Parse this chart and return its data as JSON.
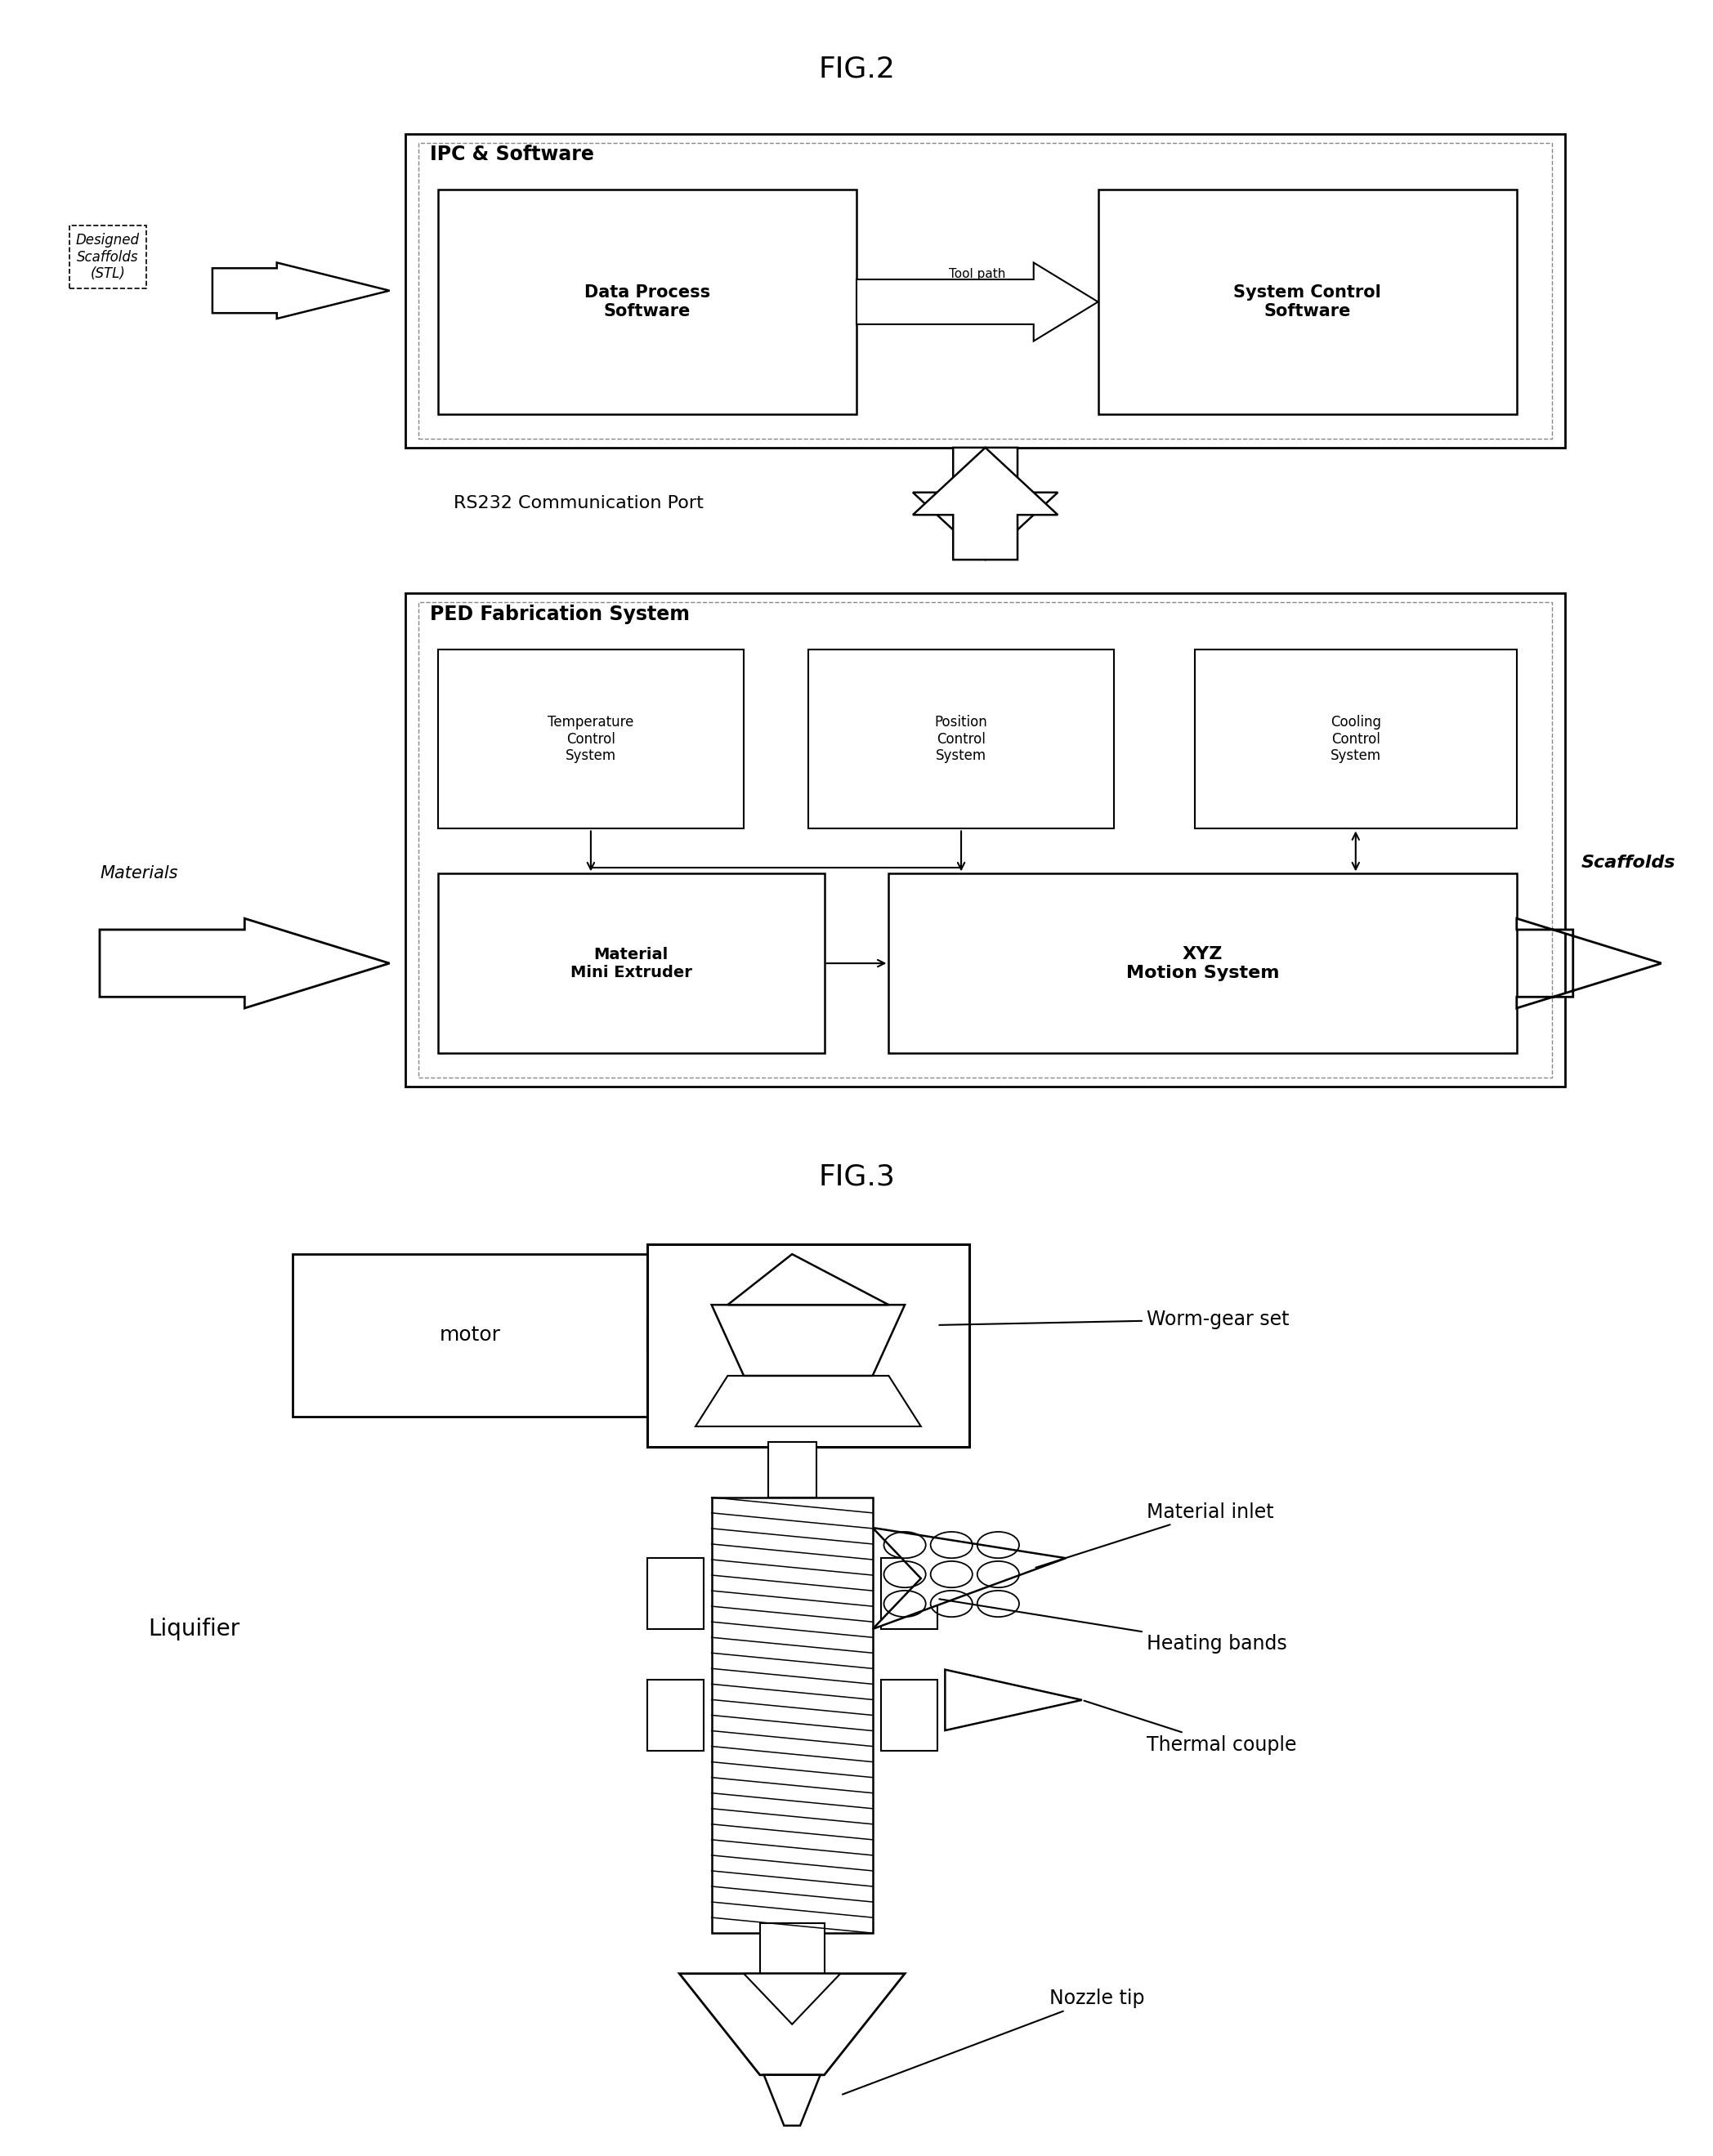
{
  "fig_title1": "FIG.2",
  "fig_title2": "FIG.3",
  "background_color": "#ffffff",
  "line_color": "#000000",
  "fig2": {
    "ipc_label": "IPC & Software",
    "data_process_label": "Data Process\nSoftware",
    "system_control_label": "System Control\nSoftware",
    "tool_path_label": "Tool path",
    "ped_label": "PED Fabrication System",
    "temp_label": "Temperature\nControl\nSystem",
    "pos_label": "Position\nControl\nSystem",
    "cool_label": "Cooling\nControl\nSystem",
    "material_ext_label": "Material\nMini Extruder",
    "xyz_label": "XYZ\nMotion System",
    "rs232_label": "RS232 Communication Port",
    "designed_label": "Designed\nScaffolds\n(STL)",
    "materials_label": "Materials",
    "scaffolds_label": "Scaffolds"
  },
  "fig3": {
    "motor_label": "motor",
    "worm_gear_label": "Worm-gear set",
    "material_inlet_label": "Material inlet",
    "heating_bands_label": "Heating bands",
    "thermal_couple_label": "Thermal couple",
    "nozzle_tip_label": "Nozzle tip",
    "liquifier_label": "Liquifier"
  }
}
